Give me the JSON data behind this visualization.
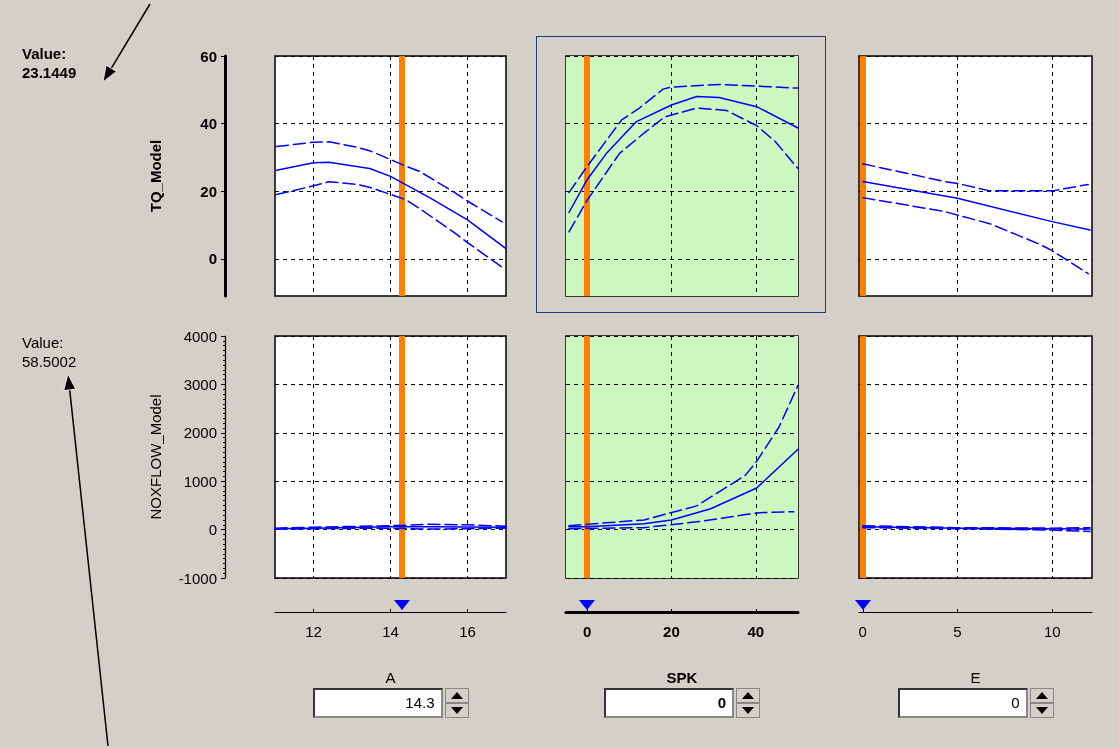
{
  "chart_data": [
    {
      "type": "line",
      "xlim": [
        11,
        17
      ],
      "xticks": [
        12,
        14,
        16
      ],
      "ylim": [
        -11,
        60
      ],
      "yticks": [
        0,
        20,
        40,
        60
      ],
      "ylabel": "TQ_Model",
      "grid": true,
      "tick_labels": "y",
      "annotations": [
        "Value:\n23.1449"
      ],
      "ref_lines": [
        {
          "axis": "x",
          "value": 14.3,
          "color": "#ff8000"
        }
      ],
      "series": [
        {
          "color": "#0000ff",
          "line_style": "solid",
          "x": [
            11.04,
            12,
            12.4,
            13.46,
            14,
            15.06,
            16,
            17
          ],
          "values": [
            26.2,
            28.4,
            28.6,
            26.7,
            24.4,
            17.8,
            11.5,
            3.0
          ]
        },
        {
          "color": "#0000ff",
          "line_style": "dashed",
          "x": [
            11.04,
            12,
            12.4,
            13.14,
            13.5,
            14.4,
            14.75,
            15.64,
            16,
            16.9
          ],
          "values": [
            33.2,
            34.5,
            34.6,
            33,
            31.8,
            27.4,
            25.9,
            19.8,
            17.1,
            10.9
          ]
        },
        {
          "color": "#0000ff",
          "line_style": "dashed",
          "x": [
            11.04,
            12,
            12.4,
            13.14,
            13.5,
            14.4,
            14.75,
            15.64,
            16,
            16.9
          ],
          "values": [
            19.0,
            21.6,
            22.8,
            22.0,
            21,
            17.5,
            14.9,
            7.9,
            4.8,
            -2.5
          ]
        }
      ]
    },
    {
      "type": "line",
      "xlim": [
        -5,
        50
      ],
      "xticks": [
        0,
        20,
        40
      ],
      "ylim": [
        -11,
        60
      ],
      "yticks": [
        0,
        20,
        40,
        60
      ],
      "grid": true,
      "tick_labels": false,
      "ref_lines": [
        {
          "axis": "x",
          "value": 0,
          "color": "#ff8000"
        }
      ],
      "bands": [
        {
          "axis": "x",
          "from": -5,
          "to": 50,
          "color": "#ccf8c0"
        }
      ],
      "series": [
        {
          "color": "#0000ff",
          "line_style": "solid",
          "x": [
            -4.3,
            0,
            4.6,
            11.7,
            20,
            26,
            31.3,
            40.2,
            50
          ],
          "values": [
            13.7,
            23.4,
            31.2,
            40.6,
            45.5,
            48,
            47.7,
            45,
            38.7
          ]
        },
        {
          "color": "#0000ff",
          "line_style": "dashed",
          "x": [
            -4.3,
            0,
            8.2,
            12.2,
            18,
            19.9,
            31.3,
            50
          ],
          "values": [
            19.6,
            27.3,
            41.1,
            44.4,
            50.2,
            50.8,
            51.6,
            50.5
          ]
        },
        {
          "color": "#0000ff",
          "line_style": "dashed",
          "x": [
            -4.3,
            0,
            7.7,
            13.5,
            18.4,
            26,
            33,
            40.2,
            44.6,
            50
          ],
          "values": [
            8,
            17.3,
            31.2,
            37.2,
            42,
            44.6,
            43.9,
            39.4,
            34.7,
            26.7
          ]
        }
      ]
    },
    {
      "type": "line",
      "xlim": [
        -0.2,
        12.1
      ],
      "xticks": [
        0,
        5,
        10
      ],
      "ylim": [
        -11,
        60
      ],
      "yticks": [
        0,
        20,
        40,
        60
      ],
      "grid": true,
      "tick_labels": false,
      "ref_lines": [
        {
          "axis": "x",
          "value": 0,
          "color": "#ff8000"
        }
      ],
      "series": [
        {
          "color": "#0000ff",
          "line_style": "solid",
          "x": [
            0,
            5,
            10,
            12
          ],
          "values": [
            22.9,
            17.9,
            11,
            8.5
          ]
        },
        {
          "color": "#0000ff",
          "line_style": "dashed",
          "x": [
            0,
            4.3,
            5,
            6.7,
            9.3,
            10,
            11.9
          ],
          "values": [
            28.1,
            22.9,
            22.3,
            20.1,
            20.1,
            20.1,
            22
          ]
        },
        {
          "color": "#0000ff",
          "line_style": "dashed",
          "x": [
            0,
            4.3,
            6.7,
            9.3,
            10,
            11.9
          ],
          "values": [
            18.1,
            14,
            10.4,
            4.4,
            2.4,
            -4.4
          ]
        }
      ]
    },
    {
      "type": "line",
      "xlim": [
        11,
        17
      ],
      "xticks": [
        12,
        14,
        16
      ],
      "ylim": [
        -1000,
        4000
      ],
      "yticks": [
        -1000,
        0,
        1000,
        2000,
        3000,
        4000
      ],
      "ylabel": "NOXFLOW_Model",
      "xlabel": "A",
      "grid": true,
      "annotations": [
        "Value:\n58.5002",
        "14.3"
      ],
      "ref_lines": [
        {
          "axis": "x",
          "value": 14.3,
          "color": "#ff8000"
        }
      ],
      "series": [
        {
          "color": "#0000ff",
          "line_style": "solid",
          "x": [
            11,
            12,
            14,
            15,
            17
          ],
          "values": [
            20,
            30,
            60,
            60,
            50
          ]
        },
        {
          "color": "#0000ff",
          "line_style": "dashed",
          "x": [
            11,
            12,
            14,
            15,
            16,
            17
          ],
          "values": [
            30,
            50,
            80,
            110,
            100,
            70
          ]
        },
        {
          "color": "#0000ff",
          "line_style": "dashed",
          "x": [
            11,
            12,
            14,
            15,
            16,
            17
          ],
          "values": [
            10,
            20,
            30,
            10,
            20,
            30
          ]
        }
      ]
    },
    {
      "type": "line",
      "xlim": [
        -5,
        50
      ],
      "xticks": [
        0,
        20,
        40
      ],
      "ylim": [
        -1000,
        4000
      ],
      "yticks": [
        -1000,
        0,
        1000,
        2000,
        3000,
        4000
      ],
      "xlabel": "SPK",
      "grid": true,
      "tick_labels": "x",
      "annotations": [
        "0"
      ],
      "ref_lines": [
        {
          "axis": "x",
          "value": 0,
          "color": "#ff8000"
        }
      ],
      "bands": [
        {
          "axis": "x",
          "from": -5,
          "to": 50,
          "color": "#ccf8c0"
        }
      ],
      "series": [
        {
          "color": "#0000ff",
          "line_style": "solid",
          "x": [
            -4.3,
            0,
            13.5,
            20,
            29.3,
            40.2,
            50
          ],
          "values": [
            60,
            60,
            120,
            200,
            430,
            860,
            1660
          ]
        },
        {
          "color": "#0000ff",
          "line_style": "dashed",
          "x": [
            -4.3,
            13.5,
            26,
            37.5,
            40.2,
            45.5,
            50
          ],
          "values": [
            80,
            200,
            490,
            1120,
            1410,
            2120,
            2980
          ]
        },
        {
          "color": "#0000ff",
          "line_style": "dashed",
          "x": [
            -4.3,
            13.5,
            26,
            37.5,
            41,
            49
          ],
          "values": [
            20,
            40,
            160,
            310,
            350,
            370
          ]
        }
      ]
    },
    {
      "type": "line",
      "xlim": [
        -0.2,
        12.1
      ],
      "xticks": [
        0,
        5,
        10
      ],
      "ylim": [
        -1000,
        4000
      ],
      "yticks": [
        -1000,
        0,
        1000,
        2000,
        3000,
        4000
      ],
      "xlabel": "E",
      "grid": true,
      "tick_labels": "x",
      "annotations": [
        "0"
      ],
      "ref_lines": [
        {
          "axis": "x",
          "value": 0,
          "color": "#ff8000"
        }
      ],
      "series": [
        {
          "color": "#0000ff",
          "line_style": "solid",
          "x": [
            0,
            5,
            10,
            12
          ],
          "values": [
            60,
            30,
            20,
            10
          ]
        },
        {
          "color": "#0000ff",
          "line_style": "dashed",
          "x": [
            0,
            5,
            10,
            12
          ],
          "values": [
            80,
            40,
            30,
            40
          ]
        },
        {
          "color": "#0000ff",
          "line_style": "dashed",
          "x": [
            0,
            5,
            10,
            12
          ],
          "values": [
            40,
            20,
            -10,
            -40
          ]
        }
      ]
    }
  ]
}
